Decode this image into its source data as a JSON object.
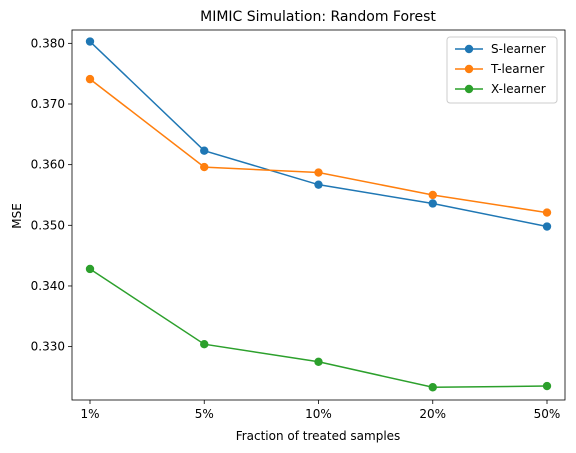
{
  "chart_data": {
    "type": "line",
    "title": "MIMIC Simulation: Random Forest",
    "xlabel": "Fraction of treated samples",
    "ylabel": "MSE",
    "categories": [
      "1%",
      "5%",
      "10%",
      "20%",
      "50%"
    ],
    "ylim": [
      0.3212,
      0.3822
    ],
    "yticks": [
      "0.330",
      "0.340",
      "0.350",
      "0.360",
      "0.370",
      "0.380"
    ],
    "ytick_values": [
      0.33,
      0.34,
      0.35,
      0.36,
      0.37,
      0.38
    ],
    "grid": false,
    "legend_position": "top-right",
    "series": [
      {
        "name": "S-learner",
        "color": "#1f77b4",
        "values": [
          0.3803,
          0.3623,
          0.3567,
          0.3536,
          0.3498
        ]
      },
      {
        "name": "T-learner",
        "color": "#ff7f0e",
        "values": [
          0.3741,
          0.3596,
          0.3587,
          0.355,
          0.3521
        ]
      },
      {
        "name": "X-learner",
        "color": "#2ca02c",
        "values": [
          0.3428,
          0.3304,
          0.3275,
          0.3233,
          0.3235
        ]
      }
    ]
  }
}
